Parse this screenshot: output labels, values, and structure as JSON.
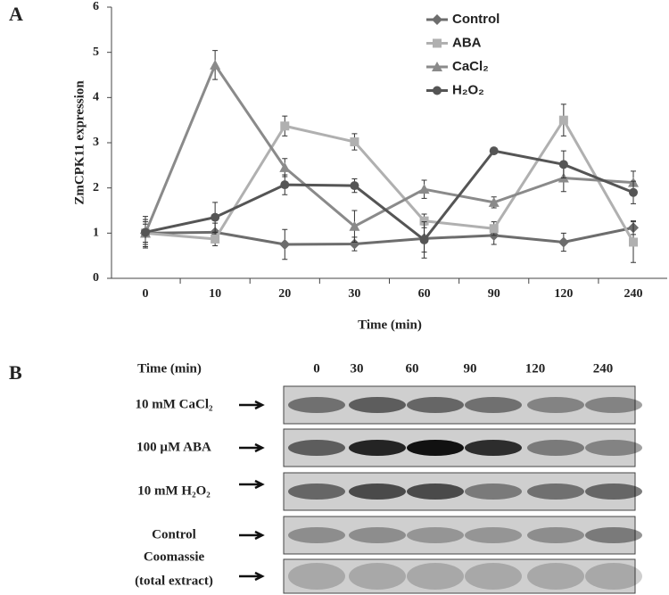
{
  "chart_data": {
    "type": "line",
    "panel_label": "A",
    "y_label": "ZmCPK11 expression",
    "x_label": "Time (min)",
    "categories": [
      "0",
      "10",
      "20",
      "30",
      "60",
      "90",
      "120",
      "240"
    ],
    "ylim": [
      0,
      6
    ],
    "yticks": [
      0,
      1,
      2,
      3,
      4,
      5,
      6
    ],
    "series": [
      {
        "name": "Control",
        "color": "#6d6d6d",
        "marker": "diamond",
        "values": [
          1.0,
          1.02,
          0.75,
          0.76,
          0.88,
          0.95,
          0.8,
          1.12
        ],
        "errors": [
          0.3,
          0.2,
          0.33,
          0.15,
          0.3,
          0.2,
          0.2,
          0.15
        ]
      },
      {
        "name": "ABA",
        "color": "#b0b0b0",
        "marker": "square",
        "values": [
          1.0,
          0.87,
          3.37,
          3.02,
          1.27,
          1.1,
          3.5,
          0.8
        ],
        "errors": [
          0.2,
          0.15,
          0.22,
          0.18,
          0.15,
          0.15,
          0.35,
          0.45
        ]
      },
      {
        "name": "CaCl₂",
        "color": "#8a8a8a",
        "marker": "triangle",
        "values": [
          1.0,
          4.72,
          2.45,
          1.15,
          1.97,
          1.68,
          2.22,
          2.12
        ],
        "errors": [
          0.25,
          0.32,
          0.2,
          0.35,
          0.2,
          0.12,
          0.3,
          0.25
        ]
      },
      {
        "name": "H₂O₂",
        "color": "#555555",
        "marker": "circle",
        "values": [
          1.02,
          1.35,
          2.07,
          2.05,
          0.85,
          2.82,
          2.52,
          1.9
        ],
        "errors": [
          0.35,
          0.33,
          0.22,
          0.15,
          0.4,
          0.05,
          0.3,
          0.25
        ]
      }
    ]
  },
  "blot": {
    "panel_label": "B",
    "header": "Time (min)",
    "times": [
      "0",
      "30",
      "60",
      "90",
      "120",
      "240"
    ],
    "rows": [
      "10 mM CaCl₂",
      "100 µM ABA",
      "10 mM H₂O₂",
      "Control"
    ],
    "coomassie": [
      "Coomassie",
      "(total extract)"
    ]
  }
}
